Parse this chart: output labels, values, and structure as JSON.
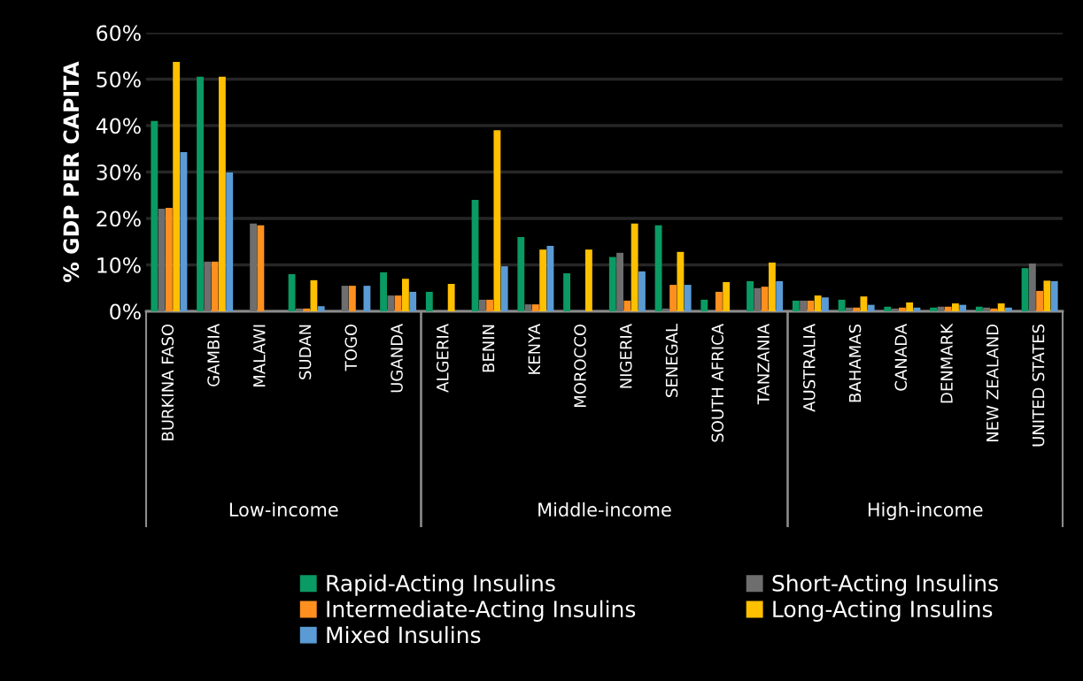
{
  "chart_data": {
    "type": "bar",
    "ylabel": "% GDP PER CAPITA",
    "categories": [
      "BURKINA FASO",
      "GAMBIA",
      "MALAWI",
      "SUDAN",
      "TOGO",
      "UGANDA",
      "ALGERIA",
      "BENIN",
      "KENYA",
      "MOROCCO",
      "NIGERIA",
      "SENEGAL",
      "SOUTH AFRICA",
      "TANZANIA",
      "AUSTRALIA",
      "BAHAMAS",
      "CANADA",
      "DENMARK",
      "NEW ZEALAND",
      "UNITED STATES"
    ],
    "series": [
      {
        "name": "Rapid-Acting Insulins",
        "color": "#0a9a63",
        "values": [
          41.0,
          50.5,
          null,
          8.0,
          null,
          8.4,
          4.2,
          24.0,
          16.0,
          8.2,
          11.7,
          18.5,
          2.5,
          6.5,
          2.3,
          2.5,
          1.0,
          0.8,
          1.0,
          9.3
        ]
      },
      {
        "name": "Short-Acting Insulins",
        "color": "#6e6e6e",
        "values": [
          22.1,
          10.7,
          18.9,
          0.6,
          5.5,
          3.4,
          null,
          2.5,
          1.5,
          null,
          12.6,
          0.6,
          null,
          5.0,
          2.3,
          0.8,
          0.6,
          1.0,
          0.8,
          10.3
        ]
      },
      {
        "name": "Intermediate-Acting Insulins",
        "color": "#ff9020",
        "values": [
          22.3,
          10.7,
          18.5,
          0.6,
          5.5,
          3.4,
          null,
          2.5,
          1.5,
          null,
          2.3,
          5.7,
          4.2,
          5.3,
          2.3,
          0.8,
          0.8,
          1.0,
          0.6,
          4.4
        ]
      },
      {
        "name": "Long-Acting Insulins",
        "color": "#ffc000",
        "values": [
          53.7,
          50.5,
          null,
          6.7,
          null,
          7.0,
          5.9,
          39.0,
          13.3,
          13.3,
          18.9,
          12.8,
          6.3,
          10.5,
          3.4,
          3.2,
          1.9,
          1.7,
          1.7,
          6.6
        ]
      },
      {
        "name": "Mixed Insulins",
        "color": "#5b9bd5",
        "values": [
          34.3,
          29.9,
          null,
          1.1,
          5.5,
          4.2,
          null,
          9.7,
          14.1,
          null,
          8.6,
          5.7,
          null,
          6.5,
          3.0,
          1.4,
          0.8,
          1.4,
          0.8,
          6.5
        ]
      }
    ],
    "ylim": [
      0,
      60
    ],
    "yticks": [
      {
        "value": 0,
        "label": "0%"
      },
      {
        "value": 10,
        "label": "10%"
      },
      {
        "value": 20,
        "label": "20%"
      },
      {
        "value": 30,
        "label": "30%"
      },
      {
        "value": 40,
        "label": "40%"
      },
      {
        "value": 50,
        "label": "50%"
      },
      {
        "value": 60,
        "label": "60%"
      }
    ],
    "grid": "y",
    "legend": "bottom",
    "annotations": [
      "Low-income",
      "Middle-income",
      "High-income"
    ]
  }
}
